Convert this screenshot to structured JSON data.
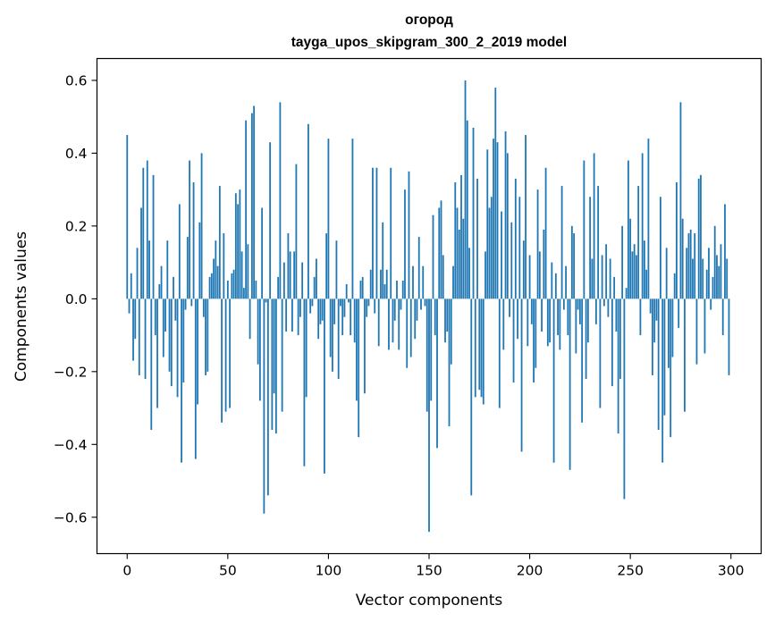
{
  "chart_data": {
    "type": "bar",
    "title": "огород",
    "subtitle": "tayga_upos_skipgram_300_2_2019 model",
    "xlabel": "Vector components",
    "ylabel": "Components values",
    "xlim": [
      -15,
      315
    ],
    "ylim": [
      -0.7,
      0.66
    ],
    "xticks": [
      0,
      50,
      100,
      150,
      200,
      250,
      300
    ],
    "xtick_labels": [
      "0",
      "50",
      "100",
      "150",
      "200",
      "250",
      "300"
    ],
    "yticks": [
      -0.6,
      -0.4,
      -0.2,
      0.0,
      0.2,
      0.4,
      0.6
    ],
    "ytick_labels": [
      "−0.6",
      "−0.4",
      "−0.2",
      "0.0",
      "0.2",
      "0.4",
      "0.6"
    ],
    "grid": false,
    "bar_color": "#1f77b4",
    "values": [
      0.45,
      -0.04,
      0.07,
      -0.17,
      -0.11,
      0.14,
      -0.21,
      0.25,
      0.36,
      -0.22,
      0.38,
      0.16,
      -0.36,
      0.34,
      -0.1,
      -0.3,
      0.04,
      0.09,
      -0.16,
      -0.09,
      0.16,
      -0.2,
      -0.24,
      0.06,
      -0.06,
      -0.27,
      0.26,
      -0.45,
      -0.23,
      -0.03,
      0.17,
      0.38,
      -0.02,
      0.32,
      -0.44,
      -0.29,
      0.21,
      0.4,
      -0.05,
      -0.21,
      -0.2,
      0.06,
      0.07,
      0.11,
      0.16,
      0.09,
      0.31,
      -0.34,
      0.18,
      -0.31,
      0.05,
      -0.3,
      0.07,
      0.08,
      0.29,
      0.26,
      0.3,
      0.13,
      0.03,
      0.49,
      0.15,
      -0.11,
      0.51,
      0.53,
      0.05,
      -0.18,
      -0.28,
      0.25,
      -0.59,
      -0.01,
      -0.54,
      0.43,
      -0.36,
      -0.26,
      -0.37,
      0.06,
      0.54,
      -0.31,
      0.1,
      -0.09,
      0.18,
      0.13,
      -0.09,
      0.13,
      0.37,
      -0.1,
      -0.05,
      0.1,
      -0.46,
      -0.27,
      0.48,
      -0.04,
      -0.02,
      0.06,
      0.11,
      -0.11,
      -0.07,
      -0.06,
      -0.48,
      0.18,
      0.44,
      -0.16,
      -0.2,
      -0.07,
      0.16,
      -0.22,
      -0.02,
      -0.1,
      -0.05,
      0.04,
      -0.01,
      -0.1,
      0.44,
      -0.12,
      -0.28,
      -0.38,
      0.05,
      0.06,
      -0.26,
      -0.05,
      -0.02,
      0.08,
      0.36,
      -0.04,
      0.36,
      -0.13,
      0.08,
      0.21,
      0.04,
      0.08,
      -0.14,
      0.36,
      -0.12,
      -0.06,
      0.05,
      -0.14,
      -0.03,
      0.05,
      0.3,
      -0.19,
      0.35,
      -0.16,
      0.09,
      -0.11,
      -0.06,
      0.17,
      -0.03,
      0.09,
      -0.02,
      -0.31,
      -0.64,
      -0.28,
      0.23,
      -0.1,
      -0.41,
      0.25,
      0.27,
      0.12,
      -0.12,
      -0.09,
      -0.35,
      -0.18,
      0.09,
      0.32,
      0.25,
      0.19,
      0.34,
      0.22,
      0.6,
      0.49,
      0.14,
      -0.54,
      0.47,
      -0.27,
      0.33,
      -0.25,
      -0.27,
      -0.29,
      0.13,
      0.41,
      0.25,
      0.28,
      0.44,
      0.58,
      0.43,
      -0.3,
      0.24,
      -0.14,
      0.46,
      0.4,
      -0.05,
      0.21,
      -0.23,
      0.33,
      -0.11,
      0.28,
      -0.42,
      0.16,
      0.45,
      -0.13,
      0.12,
      -0.07,
      -0.23,
      -0.19,
      0.3,
      0.13,
      -0.09,
      0.19,
      0.36,
      -0.13,
      -0.12,
      0.1,
      -0.45,
      0.07,
      -0.1,
      -0.14,
      0.31,
      -0.03,
      0.09,
      -0.1,
      -0.47,
      0.2,
      0.18,
      -0.15,
      -0.03,
      -0.07,
      -0.34,
      0.38,
      -0.22,
      -0.12,
      0.28,
      0.11,
      0.4,
      -0.07,
      0.31,
      -0.3,
      0.12,
      -0.02,
      0.15,
      -0.05,
      0.11,
      -0.24,
      0.06,
      -0.09,
      -0.37,
      -0.22,
      0.2,
      -0.55,
      0.03,
      0.38,
      0.22,
      0.13,
      0.15,
      0.12,
      0.31,
      -0.1,
      0.4,
      0.16,
      0.08,
      0.44,
      -0.04,
      -0.21,
      -0.12,
      -0.06,
      -0.36,
      0.28,
      -0.45,
      -0.32,
      0.14,
      -0.19,
      -0.38,
      -0.16,
      0.07,
      0.32,
      -0.08,
      0.54,
      0.22,
      -0.31,
      0.14,
      0.18,
      0.19,
      0.11,
      0.18,
      -0.18,
      0.33,
      0.34,
      0.11,
      -0.15,
      0.08,
      0.14,
      -0.03,
      0.06,
      0.2,
      0.12,
      0.09,
      0.15,
      -0.1,
      0.26,
      0.11,
      -0.21
    ]
  }
}
